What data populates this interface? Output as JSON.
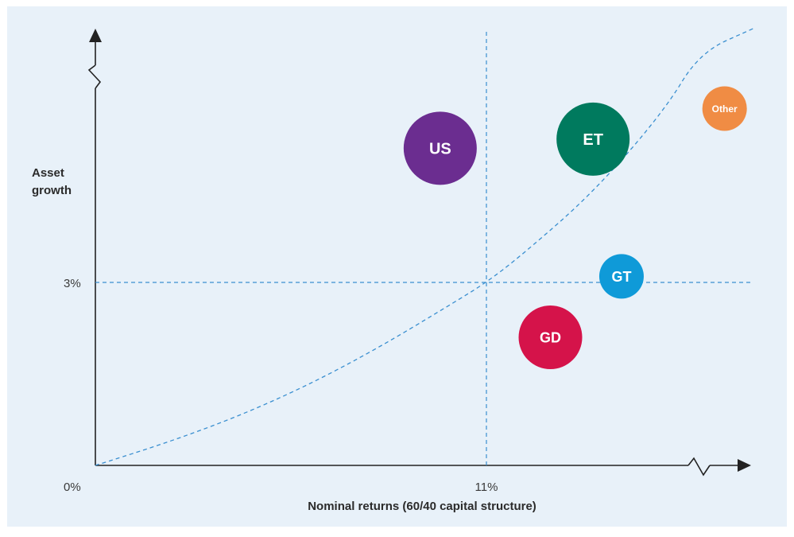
{
  "chart_data": {
    "type": "scatter",
    "title": "",
    "xlabel": "Nominal returns (60/40 capital structure)",
    "ylabel": "Asset growth",
    "x_ticks": [
      {
        "value": 0,
        "label": "0%"
      },
      {
        "value": 11,
        "label": "11%"
      }
    ],
    "y_ticks": [
      {
        "value": 3,
        "label": "3%"
      }
    ],
    "xlim": [
      0,
      18.5
    ],
    "ylim": [
      0,
      7.2
    ],
    "reference_lines": {
      "x": 11,
      "y": 3
    },
    "curve": {
      "style": "dashed",
      "color": "#3a8fd0",
      "points": [
        [
          0,
          0
        ],
        [
          2,
          0.37
        ],
        [
          4,
          0.8
        ],
        [
          6,
          1.32
        ],
        [
          8,
          1.94
        ],
        [
          10,
          2.64
        ],
        [
          11,
          3.0
        ],
        [
          12,
          3.45
        ],
        [
          14,
          4.47
        ],
        [
          16,
          5.81
        ],
        [
          17,
          6.77
        ],
        [
          18.5,
          7.9
        ]
      ]
    },
    "series": [
      {
        "name": "US",
        "x": 9.7,
        "y": 5.2,
        "color": "#6b2d90"
      },
      {
        "name": "ET",
        "x": 14.0,
        "y": 5.35,
        "color": "#007a5e"
      },
      {
        "name": "Other",
        "x": 17.7,
        "y": 5.85,
        "color": "#f08c44"
      },
      {
        "name": "GT",
        "x": 14.8,
        "y": 3.1,
        "color": "#0f9ad8"
      },
      {
        "name": "GD",
        "x": 12.8,
        "y": 2.1,
        "color": "#d5134a"
      }
    ],
    "grid": false,
    "legend": "none",
    "background": "#e8f1f9"
  }
}
